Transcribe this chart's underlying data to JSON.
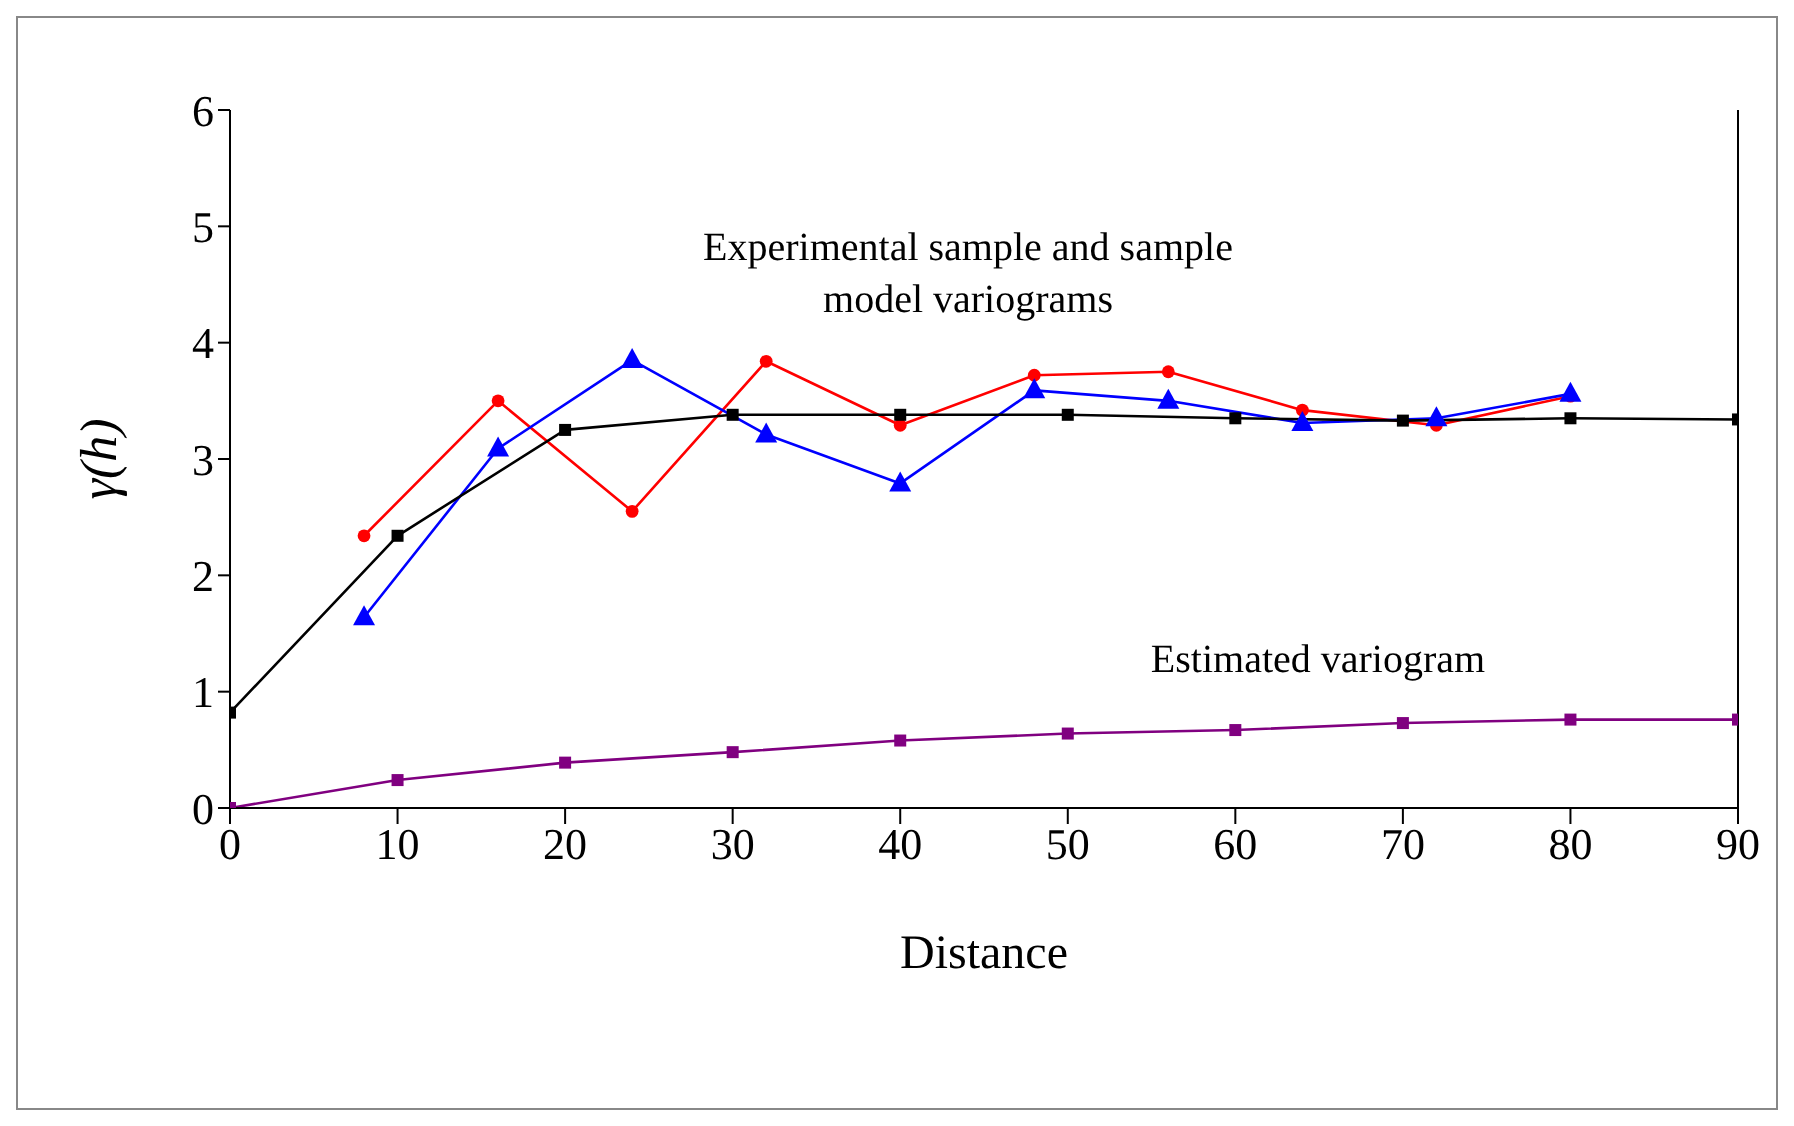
{
  "chart_data": {
    "type": "line",
    "xlabel": "Distance",
    "ylabel": "γ(h)",
    "xlim": [
      0,
      90
    ],
    "xticks": [
      0,
      10,
      20,
      30,
      40,
      50,
      60,
      70,
      80,
      90
    ],
    "ylim": [
      0,
      6
    ],
    "yticks": [
      0,
      1,
      2,
      3,
      4,
      5,
      6
    ],
    "grid": false,
    "legend": false,
    "annotations": [
      "Experimental sample and sample model variograms",
      "Estimated variogram"
    ],
    "series": [
      {
        "color": "#ff0000",
        "marker": "circle",
        "x": [
          8,
          16,
          24,
          32,
          40,
          48,
          56,
          64,
          72,
          80
        ],
        "values": [
          2.34,
          3.5,
          2.55,
          3.84,
          3.29,
          3.72,
          3.75,
          3.42,
          3.29,
          3.54
        ]
      },
      {
        "color": "#0000ff",
        "marker": "triangle",
        "x": [
          8,
          16,
          24,
          32,
          40,
          48,
          56,
          64,
          72,
          80
        ],
        "values": [
          1.64,
          3.09,
          3.85,
          3.21,
          2.79,
          3.59,
          3.5,
          3.31,
          3.35,
          3.56
        ]
      },
      {
        "color": "#000000",
        "marker": "square",
        "x": [
          0,
          10,
          20,
          30,
          40,
          50,
          60,
          70,
          80,
          90
        ],
        "values": [
          0.82,
          2.34,
          3.25,
          3.38,
          3.38,
          3.38,
          3.35,
          3.33,
          3.35,
          3.34
        ]
      },
      {
        "color": "#800080",
        "marker": "square",
        "x": [
          0,
          10,
          20,
          30,
          40,
          50,
          60,
          70,
          80,
          90
        ],
        "values": [
          0,
          0.24,
          0.39,
          0.48,
          0.58,
          0.64,
          0.67,
          0.73,
          0.76,
          0.76
        ]
      }
    ]
  }
}
